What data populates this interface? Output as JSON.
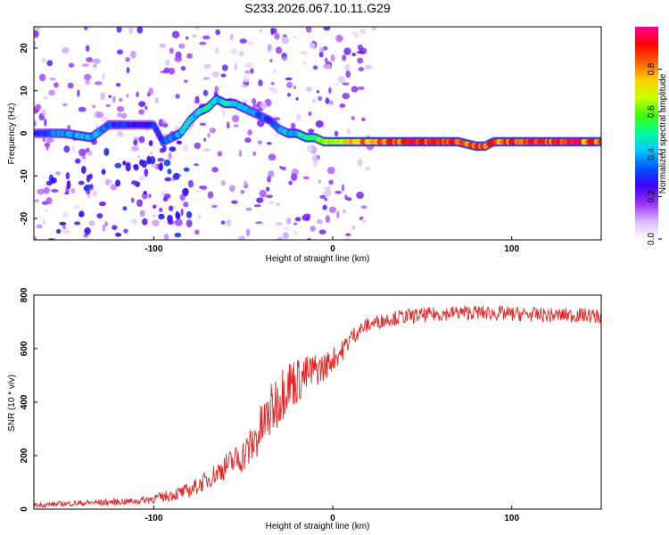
{
  "title": "S233.2026.067.10.11.G29",
  "chart_data": [
    {
      "type": "heatmap",
      "xlabel": "Height of straight line (km)",
      "ylabel": "Frequency (Hz)",
      "xlim": [
        -167,
        150
      ],
      "ylim": [
        -25,
        25
      ],
      "xticks": [
        -100,
        0,
        100
      ],
      "yticks": [
        -20,
        -10,
        0,
        10,
        20
      ],
      "colorbar": {
        "label": "Normalized spectral amplitude",
        "range": [
          0,
          1
        ],
        "ticks": [
          "0.0",
          "0.2",
          "0.4",
          "0.6",
          "0.8"
        ],
        "tick_values": [
          0.0,
          0.2,
          0.4,
          0.6,
          0.8
        ],
        "colors": [
          "#ffffff",
          "#d9b8ff",
          "#9b30ff",
          "#3b00ff",
          "#0055ff",
          "#00c8ff",
          "#00ff9a",
          "#40ff00",
          "#c8ff00",
          "#ffd000",
          "#ff6000",
          "#ff0000",
          "#ff0090"
        ]
      },
      "ridge": {
        "x": [
          -167,
          -150,
          -135,
          -125,
          -110,
          -100,
          -95,
          -90,
          -85,
          -80,
          -75,
          -70,
          -65,
          -60,
          -55,
          -50,
          -45,
          -40,
          -35,
          -30,
          -25,
          -20,
          -15,
          -10,
          -5,
          0,
          5,
          10,
          20,
          30,
          40,
          50,
          60,
          70,
          80,
          85,
          90,
          100,
          110,
          120,
          130,
          140,
          150
        ],
        "f": [
          0,
          0,
          -1,
          2,
          2,
          2,
          -2,
          -1,
          0,
          3,
          5,
          6,
          8,
          7,
          7,
          6,
          5,
          4,
          3,
          1,
          0,
          0,
          -1,
          -1,
          -2,
          -2,
          -2,
          -2,
          -2,
          -2,
          -2,
          -2,
          -2,
          -2,
          -3,
          -3,
          -2,
          -2,
          -2,
          -2,
          -2,
          -2,
          -2
        ],
        "amp": [
          0.3,
          0.4,
          0.45,
          0.35,
          0.3,
          0.3,
          0.35,
          0.4,
          0.45,
          0.5,
          0.45,
          0.55,
          0.5,
          0.5,
          0.45,
          0.45,
          0.4,
          0.35,
          0.35,
          0.4,
          0.45,
          0.45,
          0.55,
          0.6,
          0.7,
          0.75,
          0.75,
          0.8,
          0.85,
          0.95,
          0.95,
          0.95,
          0.95,
          0.95,
          0.9,
          0.9,
          0.9,
          0.92,
          0.95,
          0.95,
          0.95,
          0.92,
          0.9
        ]
      }
    },
    {
      "type": "line",
      "xlabel": "Height of straight line (km)",
      "ylabel": "SNR (10 * v/v)",
      "xlim": [
        -167,
        150
      ],
      "ylim": [
        0,
        800
      ],
      "xticks": [
        -100,
        0,
        100
      ],
      "yticks": [
        0,
        200,
        400,
        600,
        800
      ],
      "series": [
        {
          "name": "SNR",
          "color": "#ee2222",
          "x": [
            -167,
            -150,
            -130,
            -110,
            -95,
            -80,
            -70,
            -60,
            -50,
            -45,
            -40,
            -35,
            -30,
            -25,
            -20,
            -15,
            -10,
            -5,
            0,
            5,
            10,
            15,
            20,
            25,
            30,
            40,
            50,
            60,
            70,
            80,
            100,
            120,
            140,
            150
          ],
          "y": [
            15,
            20,
            25,
            30,
            45,
            70,
            110,
            160,
            200,
            240,
            300,
            360,
            420,
            470,
            480,
            500,
            520,
            530,
            560,
            590,
            640,
            670,
            690,
            700,
            710,
            720,
            725,
            730,
            735,
            735,
            730,
            725,
            725,
            720
          ],
          "spread": [
            20,
            20,
            25,
            25,
            40,
            55,
            70,
            100,
            130,
            160,
            190,
            200,
            220,
            200,
            180,
            150,
            130,
            110,
            90,
            80,
            70,
            60,
            55,
            55,
            55,
            55,
            55,
            55,
            55,
            55,
            55,
            55,
            55,
            55
          ]
        }
      ]
    }
  ]
}
